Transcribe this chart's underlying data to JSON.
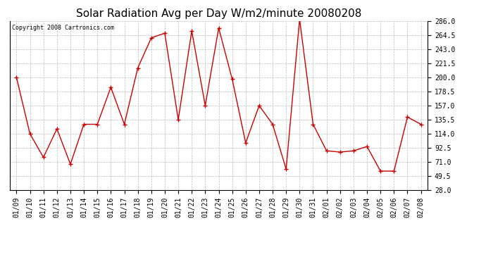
{
  "title": "Solar Radiation Avg per Day W/m2/minute 20080208",
  "copyright": "Copyright 2008 Cartronics.com",
  "dates": [
    "01/09",
    "01/10",
    "01/11",
    "01/12",
    "01/13",
    "01/14",
    "01/15",
    "01/16",
    "01/17",
    "01/18",
    "01/19",
    "01/20",
    "01/21",
    "01/22",
    "01/23",
    "01/24",
    "01/25",
    "01/26",
    "01/27",
    "01/28",
    "01/29",
    "01/30",
    "01/31",
    "02/01",
    "02/02",
    "02/03",
    "02/04",
    "02/05",
    "02/06",
    "02/07",
    "02/08"
  ],
  "values": [
    200.0,
    114.0,
    78.0,
    121.5,
    67.5,
    128.5,
    128.5,
    185.0,
    128.5,
    214.5,
    260.5,
    267.5,
    135.5,
    271.0,
    157.0,
    275.5,
    197.5,
    100.0,
    157.0,
    128.5,
    60.0,
    289.0,
    128.5,
    88.0,
    86.0,
    88.0,
    94.5,
    57.0,
    57.0,
    139.5,
    128.5
  ],
  "line_color": "#cc0000",
  "marker": "+",
  "markersize": 5,
  "markeredgewidth": 1.0,
  "linewidth": 1.0,
  "background_color": "#ffffff",
  "plot_bg_color": "#ffffff",
  "grid_color": "#bbbbbb",
  "title_fontsize": 11,
  "tick_fontsize": 7,
  "copyright_fontsize": 6,
  "ylim": [
    28.0,
    286.0
  ],
  "yticks": [
    28.0,
    49.5,
    71.0,
    92.5,
    114.0,
    135.5,
    157.0,
    178.5,
    200.0,
    221.5,
    243.0,
    264.5,
    286.0
  ]
}
